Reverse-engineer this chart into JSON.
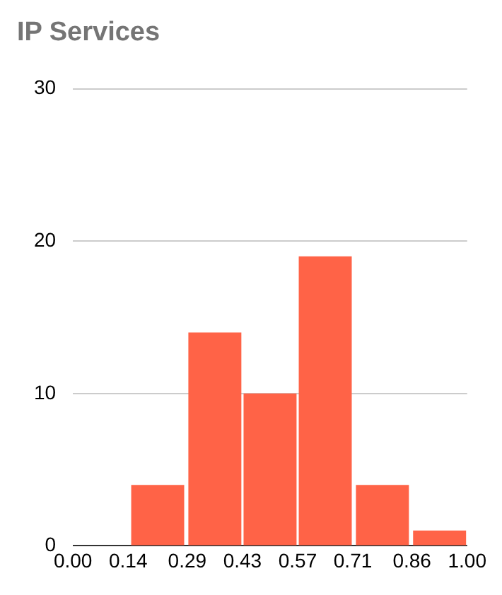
{
  "chart_data": {
    "type": "histogram",
    "title": "IP Services",
    "bins": [
      0.14,
      0.29,
      0.43,
      0.57,
      0.71,
      0.86,
      1
    ],
    "values": [
      4,
      14,
      10,
      19,
      4,
      1
    ],
    "color": "#ff6347",
    "xlim": [
      0,
      1
    ],
    "xticks": [
      {
        "value": 0,
        "label": "0.00"
      },
      {
        "value": 0.14,
        "label": "0.14"
      },
      {
        "value": 0.29,
        "label": "0.29"
      },
      {
        "value": 0.43,
        "label": "0.43"
      },
      {
        "value": 0.57,
        "label": "0.57"
      },
      {
        "value": 0.71,
        "label": "0.71"
      },
      {
        "value": 0.86,
        "label": "0.86"
      },
      {
        "value": 1,
        "label": "1.00"
      }
    ],
    "ylim": [
      0,
      30
    ],
    "yticks": [
      0,
      10,
      20,
      30
    ],
    "grid": "y"
  }
}
